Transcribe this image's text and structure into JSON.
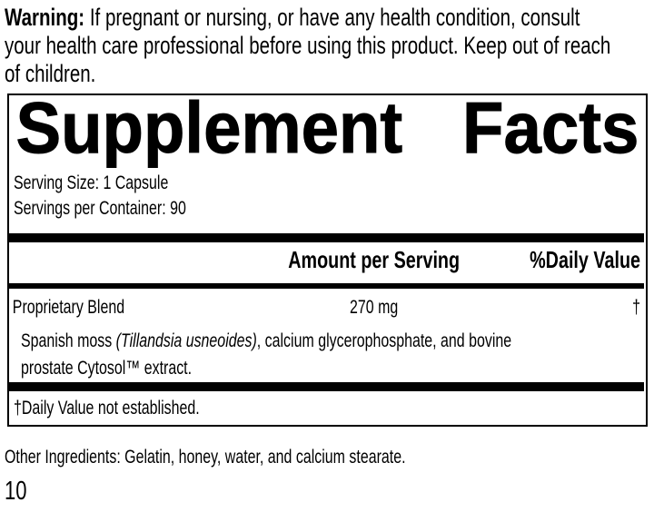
{
  "colors": {
    "text": "#000000",
    "background": "#ffffff",
    "rule": "#000000"
  },
  "warning": {
    "label": "Warning:",
    "line1": " If pregnant or nursing, or have any health condition, consult",
    "line2": "your health care professional before using this product. Keep out of reach",
    "line3": "of children."
  },
  "panel": {
    "title_left": "Supplement",
    "title_right": "Facts",
    "serving_size": "Serving Size: 1 Capsule",
    "servings_per_container": "Servings per Container: 90",
    "columns": {
      "amount": "Amount per Serving",
      "daily_value": "%Daily Value"
    },
    "rows": [
      {
        "name": "Proprietary Blend",
        "amount": "270 mg",
        "daily_value": "†",
        "description": {
          "line1_pre": "Spanish moss ",
          "line1_italic": "(Tillandsia usneoides)",
          "line1_rest": ", calcium glycerophosphate, and bovine",
          "line2_pre": "prostate Cytosol",
          "line2_tm": "™",
          "line2_rest": " extract."
        }
      }
    ],
    "footnote": "†Daily Value not established."
  },
  "other_ingredients": "Other Ingredients: Gelatin, honey, water, and calcium stearate.",
  "page_number": "10"
}
